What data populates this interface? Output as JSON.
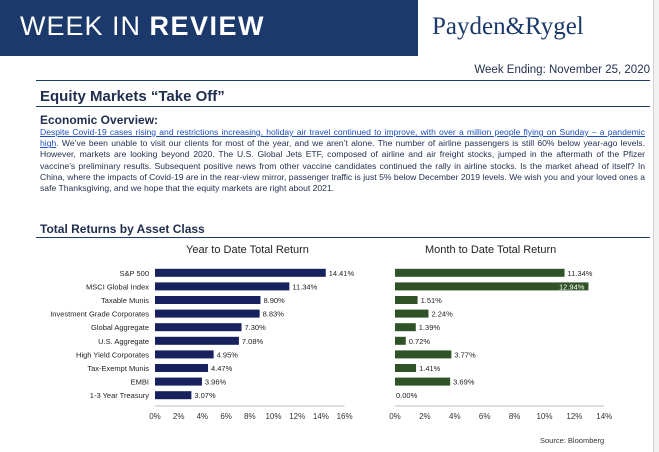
{
  "header": {
    "title_regular": "WEEK IN",
    "title_bold": "REVIEW",
    "brand": "Payden&Rygel"
  },
  "week_ending": {
    "label": "Week Ending:",
    "date": "November 25, 2020"
  },
  "article": {
    "headline": "Equity Markets “Take Off”",
    "subhead": "Economic Overview:",
    "link_text": "Despite Covid-19 cases rising and restrictions increasing, holiday air travel continued to improve, with over a million people flying on Sunday – a pandemic high",
    "body": ". We’ve been unable to visit our clients for most of the year, and we aren’t alone. The number of airline passengers is still 60% below year-ago levels. However, markets are looking beyond 2020. The U.S. Global Jets ETF, composed of airline and air freight stocks, jumped in the aftermath of the Pfizer vaccine’s preliminary results. Subsequent positive news from other vaccine candidates continued the rally in airline stocks. Is the market ahead of itself? In China, where the impacts of Covid-19 are in the rear-view mirror, passenger traffic is just 5% below December 2019 levels. We wish you and your loved ones a safe Thanksgiving, and we hope that the equity markets are right about 2021."
  },
  "section_title": "Total Returns by Asset Class",
  "source": "Source: Bloomberg",
  "colors": {
    "ytd_bar": "#16215e",
    "mtd_bar": "#2f5326",
    "banner": "#1b3a6b"
  },
  "chart_data": [
    {
      "type": "bar",
      "orientation": "horizontal",
      "title": "Year to Date Total Return",
      "categories": [
        "S&P 500",
        "MSCI Global Index",
        "Taxable Munis",
        "Investment Grade Corporates",
        "Global Aggregate",
        "U.S. Aggregate",
        "High Yield Corporates",
        "Tax-Exempt Munis",
        "EMBI",
        "1-3 Year Treasury"
      ],
      "values": [
        14.41,
        11.34,
        8.9,
        8.83,
        7.3,
        7.08,
        4.95,
        4.47,
        3.96,
        3.07
      ],
      "labels": [
        "14.41%",
        "11.34%",
        "8.90%",
        "8.83%",
        "7.30%",
        "7.08%",
        "4.95%",
        "4.47%",
        "3.96%",
        "3.07%"
      ],
      "xticks": [
        "0%",
        "2%",
        "4%",
        "6%",
        "8%",
        "10%",
        "12%",
        "14%",
        "16%"
      ],
      "xlim": [
        0,
        16
      ]
    },
    {
      "type": "bar",
      "orientation": "horizontal",
      "title": "Month to Date Total Return",
      "categories": [
        "S&P 500",
        "MSCI Global Index",
        "Taxable Munis",
        "Investment Grade Corporates",
        "Global Aggregate",
        "U.S. Aggregate",
        "High Yield Corporates",
        "Tax-Exempt Munis",
        "EMBI",
        "1-3 Year Treasury"
      ],
      "values": [
        11.34,
        12.94,
        1.51,
        2.24,
        1.39,
        0.72,
        3.77,
        1.41,
        3.69,
        0.0
      ],
      "labels": [
        "11.34%",
        "12.94%",
        "1.51%",
        "2.24%",
        "1.39%",
        "0.72%",
        "3.77%",
        "1.41%",
        "3.69%",
        "0.00%"
      ],
      "xticks": [
        "0%",
        "2%",
        "4%",
        "6%",
        "8%",
        "10%",
        "12%",
        "14%"
      ],
      "xlim": [
        0,
        14
      ]
    }
  ]
}
